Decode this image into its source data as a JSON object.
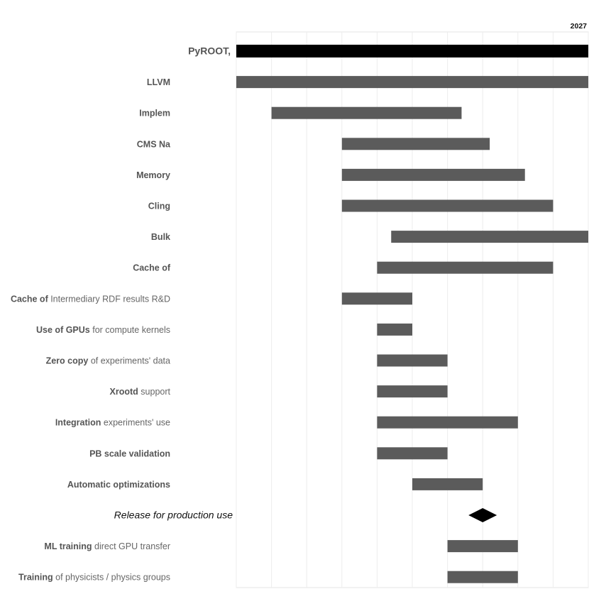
{
  "chart_data": {
    "type": "gantt",
    "title": "",
    "xlabel": "",
    "ylabel": "",
    "x_unit": "year",
    "xlim": [
      2022.0,
      2027.0
    ],
    "x_ticks": [
      "2027"
    ],
    "grid": true,
    "bar_color": "#5b5b5b",
    "milestone_color": "#000000",
    "rows": [
      {
        "id": "pyroot",
        "label_bold": "PyROOT,",
        "label_rest": "",
        "header": true
      },
      {
        "id": "llvm",
        "label_bold": "LLVM",
        "label_rest": "",
        "start": 2022.0,
        "end": 2027.0
      },
      {
        "id": "impl",
        "label_bold": "Implem",
        "label_rest": "",
        "start": 2022.5,
        "end": 2025.2
      },
      {
        "id": "cms",
        "label_bold": "CMS Na",
        "label_rest": "",
        "start": 2023.5,
        "end": 2025.6
      },
      {
        "id": "memory",
        "label_bold": "Memory",
        "label_rest": "",
        "start": 2023.5,
        "end": 2026.1
      },
      {
        "id": "cling",
        "label_bold": "Cling",
        "label_rest": "",
        "start": 2023.5,
        "end": 2026.5
      },
      {
        "id": "bulk",
        "label_bold": "Bulk",
        "label_rest": "",
        "start": 2024.2,
        "end": 2027.0
      },
      {
        "id": "cache1",
        "label_bold": "Cache of",
        "label_rest": "",
        "start": 2024.0,
        "end": 2026.5
      },
      {
        "id": "cache2",
        "label_bold": "Cache of",
        "label_rest": "Intermediary RDF results R&D",
        "start": 2023.5,
        "end": 2024.5
      },
      {
        "id": "gpus",
        "label_bold": "Use of GPUs",
        "label_rest": "for compute kernels",
        "start": 2024.0,
        "end": 2024.5
      },
      {
        "id": "zero",
        "label_bold": "Zero copy",
        "label_rest": "of experiments' data",
        "start": 2024.0,
        "end": 2025.0
      },
      {
        "id": "xrootd",
        "label_bold": "Xrootd",
        "label_rest": "support",
        "start": 2024.0,
        "end": 2025.0
      },
      {
        "id": "integration",
        "label_bold": "Integration",
        "label_rest": "experiments' use",
        "start": 2024.0,
        "end": 2026.0
      },
      {
        "id": "pbscale",
        "label_bold": "PB scale validation",
        "label_rest": "",
        "start": 2024.0,
        "end": 2025.0
      },
      {
        "id": "autoopt",
        "label_bold": "Automatic optimizations",
        "label_rest": "",
        "start": 2024.5,
        "end": 2025.5
      },
      {
        "id": "release",
        "label_bold": "",
        "label_rest": "Release for production use",
        "milestone": 2025.5
      },
      {
        "id": "mltraining",
        "label_bold": "ML training",
        "label_rest": "direct GPU transfer",
        "start": 2025.0,
        "end": 2026.0
      },
      {
        "id": "training",
        "label_bold": "Training",
        "label_rest": "of physicists / physics groups",
        "start": 2025.0,
        "end": 2026.0
      }
    ]
  }
}
